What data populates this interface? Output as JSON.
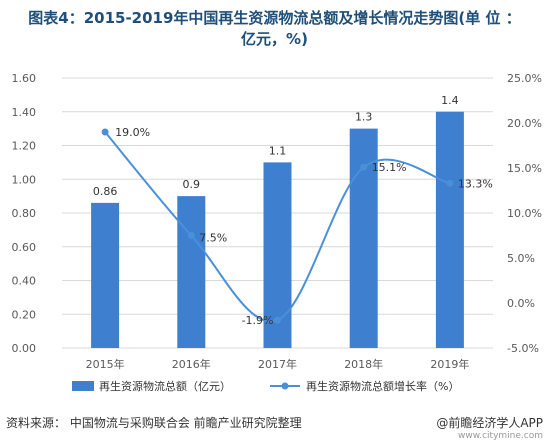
{
  "title_line1": "图表4：2015-2019年中国再生资源物流总额及增长情况走势图(单 位 ：",
  "title_line2": "亿元，%)",
  "source": "资料来源： 中国物流与采购联合会 前瞻产业研究院整理",
  "brand": "@前瞻经济学人APP",
  "brand_sub": "www.cityminе.com",
  "colors": {
    "bar": "#3f7fd0",
    "line": "#4a90d9",
    "axis_text": "#595959",
    "grid": "#d9d9d9"
  },
  "chart_data": {
    "type": "bar",
    "categories": [
      "2015年",
      "2016年",
      "2017年",
      "2018年",
      "2019年"
    ],
    "series": [
      {
        "name": "再生资源物流总额（亿元）",
        "type": "bar",
        "axis": "left",
        "values": [
          0.86,
          0.9,
          1.1,
          1.3,
          1.4
        ],
        "labels": [
          "0.86",
          "0.9",
          "1.1",
          "1.3",
          "1.4"
        ]
      },
      {
        "name": "再生资源物流总额增长率（%）",
        "type": "line",
        "axis": "right",
        "values": [
          19.0,
          7.5,
          -1.9,
          15.1,
          13.3
        ],
        "labels": [
          "19.0%",
          "7.5%",
          "-1.9%",
          "15.1%",
          "13.3%"
        ]
      }
    ],
    "y_left": {
      "min": 0,
      "max": 1.6,
      "ticks": [
        "0.00",
        "0.20",
        "0.40",
        "0.60",
        "0.80",
        "1.00",
        "1.20",
        "1.40",
        "1.60"
      ]
    },
    "y_right": {
      "min": -5,
      "max": 25,
      "ticks": [
        "-5.0%",
        "0.0%",
        "5.0%",
        "10.0%",
        "15.0%",
        "20.0%",
        "25.0%"
      ]
    },
    "legend_position": "bottom"
  }
}
